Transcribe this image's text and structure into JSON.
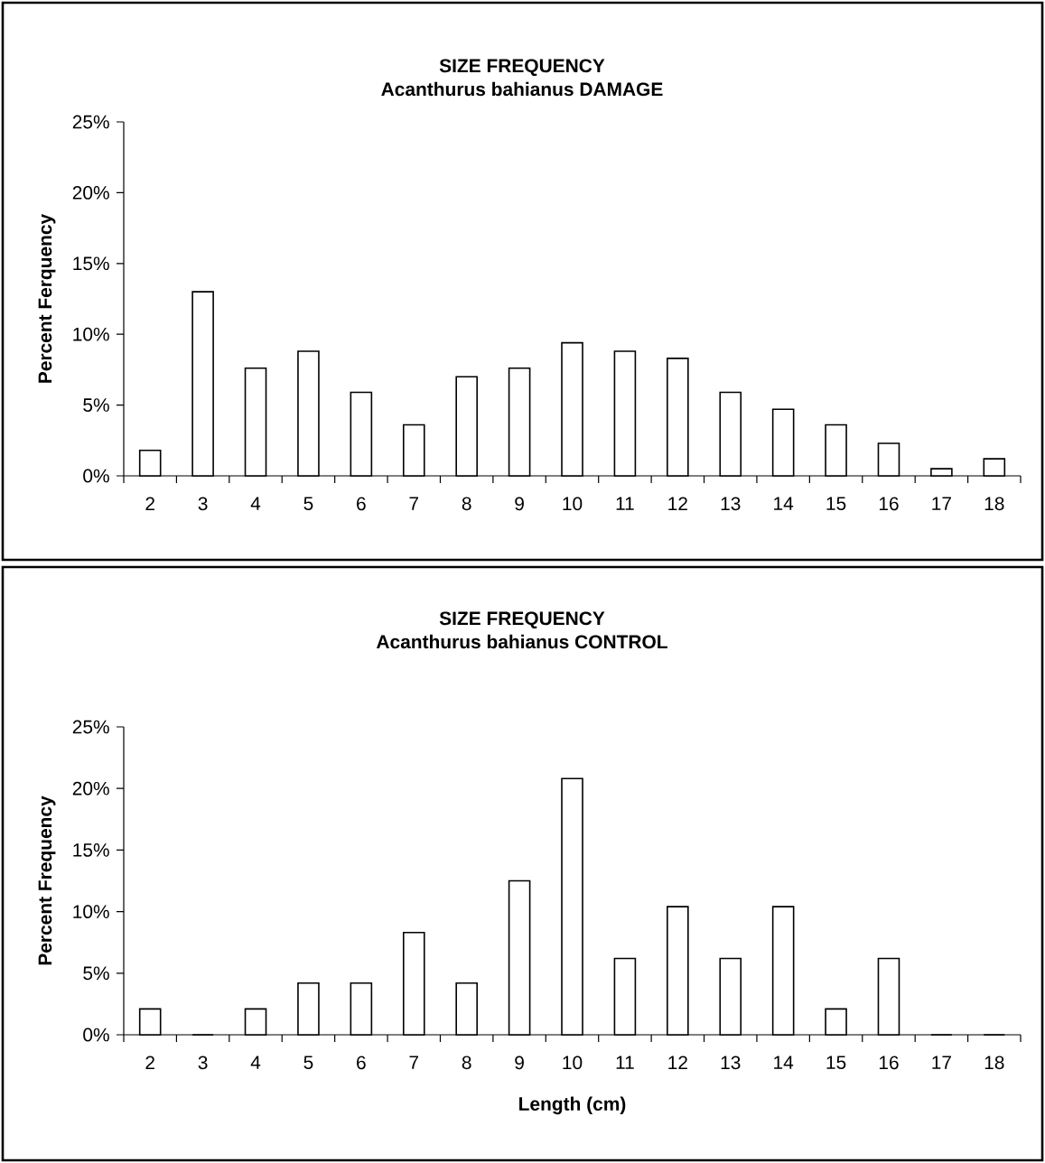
{
  "chart_data": [
    {
      "type": "bar",
      "title": "SIZE FREQUENCY",
      "subtitle": "Acanthurus bahianus DAMAGE",
      "ylabel": "Percent Ferquency",
      "categories": [
        "2",
        "3",
        "4",
        "5",
        "6",
        "7",
        "8",
        "9",
        "10",
        "11",
        "12",
        "13",
        "14",
        "15",
        "16",
        "17",
        "18"
      ],
      "values": [
        1.8,
        13.0,
        7.6,
        8.8,
        5.9,
        3.6,
        7.0,
        7.6,
        9.4,
        8.8,
        8.3,
        5.9,
        4.7,
        3.6,
        2.3,
        0.5,
        1.2
      ],
      "color": "#000000",
      "ylim": [
        0,
        25
      ],
      "yticks": [
        {
          "value": 0,
          "label": "0%"
        },
        {
          "value": 5,
          "label": "5%"
        },
        {
          "value": 10,
          "label": "10%"
        },
        {
          "value": 15,
          "label": "15%"
        },
        {
          "value": 20,
          "label": "20%"
        },
        {
          "value": 25,
          "label": "25%"
        }
      ]
    },
    {
      "type": "bar",
      "title": "SIZE FREQUENCY",
      "subtitle": "Acanthurus bahianus CONTROL",
      "ylabel": "Percent Frequency",
      "xlabel": "Length (cm)",
      "categories": [
        "2",
        "3",
        "4",
        "5",
        "6",
        "7",
        "8",
        "9",
        "10",
        "11",
        "12",
        "13",
        "14",
        "15",
        "16",
        "17",
        "18"
      ],
      "values": [
        2.1,
        0,
        2.1,
        4.2,
        4.2,
        8.3,
        4.2,
        12.5,
        20.8,
        6.2,
        10.4,
        6.2,
        10.4,
        2.1,
        6.2,
        0,
        0
      ],
      "color": "#000000",
      "ylim": [
        0,
        25
      ],
      "yticks": [
        {
          "value": 0,
          "label": "0%"
        },
        {
          "value": 5,
          "label": "5%"
        },
        {
          "value": 10,
          "label": "10%"
        },
        {
          "value": 15,
          "label": "15%"
        },
        {
          "value": 20,
          "label": "20%"
        },
        {
          "value": 25,
          "label": "25%"
        }
      ]
    }
  ]
}
